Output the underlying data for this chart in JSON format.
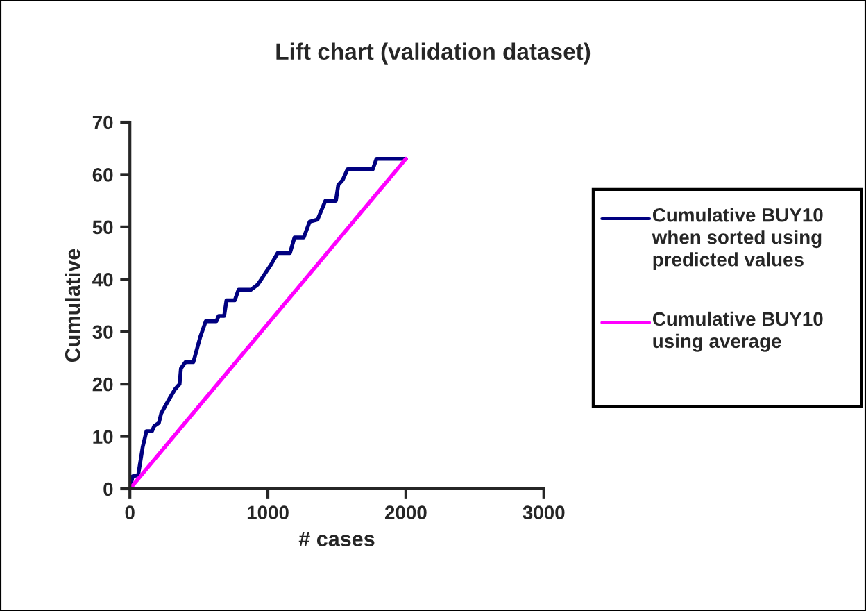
{
  "chart_data": {
    "type": "line",
    "title": "Lift chart (validation dataset)",
    "xlabel": "# cases",
    "ylabel": "Cumulative",
    "xlim": [
      0,
      3000
    ],
    "xticks": [
      0,
      1000,
      2000,
      3000
    ],
    "ylim": [
      0,
      70
    ],
    "yticks": [
      0,
      10,
      20,
      30,
      40,
      50,
      60,
      70
    ],
    "grid": false,
    "legend": "right",
    "marker": "none",
    "line_style": "solid",
    "series": [
      {
        "name": "Cumulative BUY10 when sorted using predicted values",
        "color": "#000080",
        "x": [
          0,
          20,
          60,
          93,
          120,
          160,
          177,
          210,
          227,
          260,
          293,
          327,
          360,
          370,
          403,
          460,
          510,
          550,
          627,
          643,
          683,
          700,
          760,
          787,
          877,
          927,
          977,
          1027,
          1070,
          1160,
          1193,
          1260,
          1303,
          1360,
          1417,
          1493,
          1510,
          1543,
          1577,
          1760,
          1787,
          2000
        ],
        "values": [
          0,
          2.4,
          2.6,
          8,
          11,
          11,
          12,
          12.6,
          14.4,
          16,
          17.5,
          19,
          20,
          23,
          24.2,
          24.2,
          29,
          32,
          32,
          33,
          33,
          36,
          36,
          38,
          38,
          39,
          41,
          43,
          45,
          45,
          48,
          48,
          51,
          51.4,
          55,
          55,
          58,
          59,
          61,
          61,
          63,
          63
        ]
      },
      {
        "name": "Cumulative BUY10 using average",
        "color": "#ff00ff",
        "x": [
          0,
          2000
        ],
        "values": [
          0,
          63
        ]
      }
    ]
  }
}
